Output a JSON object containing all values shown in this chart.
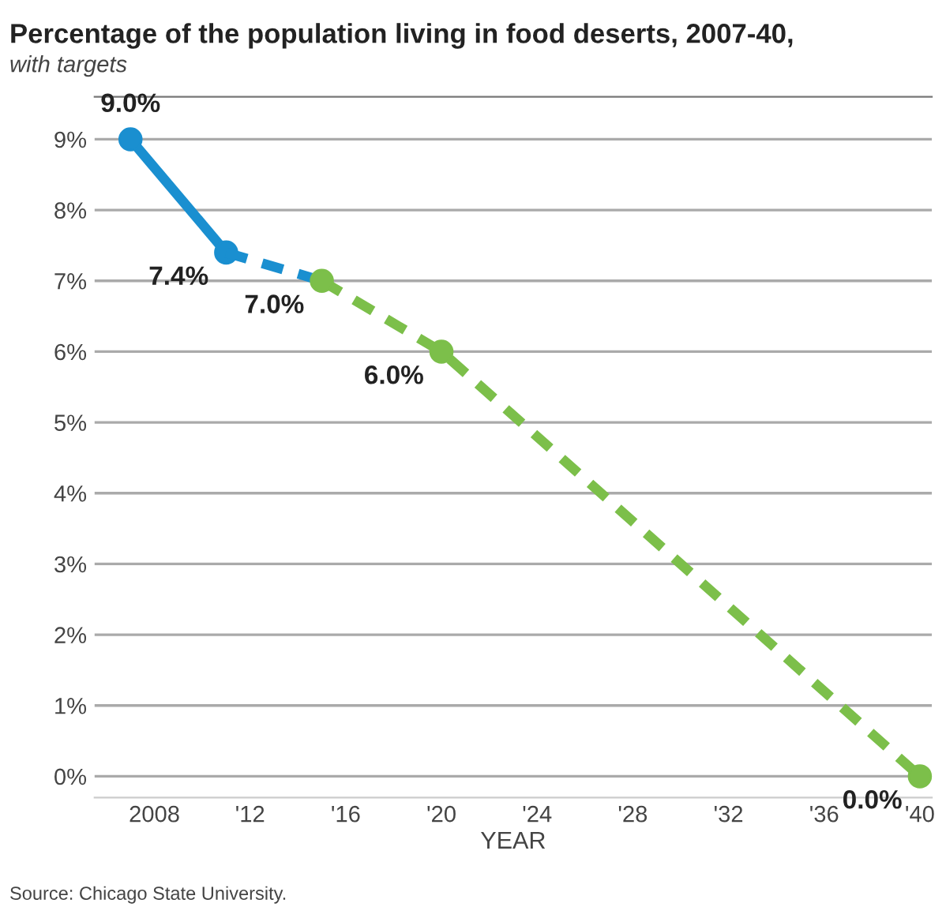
{
  "chart_data": {
    "type": "line",
    "title": "Percentage of the population living in food deserts, 2007-40,",
    "subtitle": "with targets",
    "xlabel": "YEAR",
    "annotations": [
      "Source: Chicago State University."
    ],
    "series": [
      {
        "color": "#1a8fd0",
        "x": [
          2007,
          2011
        ],
        "values": [
          9.0,
          7.4
        ],
        "line_style": "solid",
        "marker": "circle",
        "value_labels": [
          "9.0%",
          "7.4%"
        ]
      },
      {
        "color": "#1a8fd0",
        "x": [
          2011,
          2015
        ],
        "values": [
          7.4,
          7.0
        ],
        "line_style": "dashed",
        "marker": "none"
      },
      {
        "color": "#7cbf4a",
        "x": [
          2015,
          2020,
          2040
        ],
        "values": [
          7.0,
          6.0,
          0.0
        ],
        "line_style": "dashed",
        "marker": "circle",
        "value_labels": [
          "7.0%",
          "6.0%",
          "0.0%"
        ]
      }
    ],
    "xlim": [
      2005.5,
      2040.5
    ],
    "xticks": [
      {
        "value": 2008,
        "label": "2008"
      },
      {
        "value": 2012,
        "label": "'12"
      },
      {
        "value": 2016,
        "label": "'16"
      },
      {
        "value": 2020,
        "label": "'20"
      },
      {
        "value": 2024,
        "label": "'24"
      },
      {
        "value": 2028,
        "label": "'28"
      },
      {
        "value": 2032,
        "label": "'32"
      },
      {
        "value": 2036,
        "label": "'36"
      },
      {
        "value": 2040,
        "label": "'40"
      }
    ],
    "ylim": [
      -0.3,
      9.6
    ],
    "yticks": [
      {
        "value": 0,
        "label": "0%"
      },
      {
        "value": 1,
        "label": "1%"
      },
      {
        "value": 2,
        "label": "2%"
      },
      {
        "value": 3,
        "label": "3%"
      },
      {
        "value": 4,
        "label": "4%"
      },
      {
        "value": 5,
        "label": "5%"
      },
      {
        "value": 6,
        "label": "6%"
      },
      {
        "value": 7,
        "label": "7%"
      },
      {
        "value": 8,
        "label": "8%"
      },
      {
        "value": 9,
        "label": "9%"
      }
    ],
    "grid": "y",
    "legend": false
  }
}
